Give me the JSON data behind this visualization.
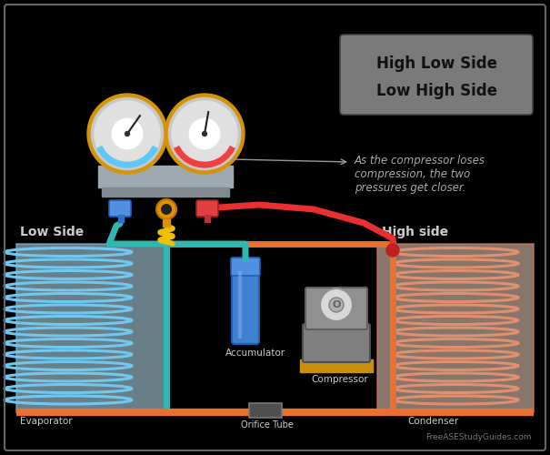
{
  "bg_color": "#000000",
  "border_color": "#666666",
  "title_box_text_line1": "High Low Side",
  "title_box_text_line2": "Low High Side",
  "annotation_text": "As the compressor loses\ncompression, the two\npressures get closer.",
  "low_side_label": "Low Side",
  "high_side_label": "High side",
  "evaporator_label": "Evaporator",
  "accumulator_label": "Accumulator",
  "compressor_label": "Compressor",
  "orifice_label": "Orifice Tube",
  "condenser_label": "Condenser",
  "website_text": "FreeASEStudyGuides.com",
  "gauge_left_color": "#5bc8f5",
  "gauge_right_color": "#f04040",
  "gauge_border_color": "#d4940a",
  "gauge_body_color": "#c8c8c8",
  "gauge_body_light": "#e0e0e0",
  "hose_teal_color": "#30b8b0",
  "hose_yellow_color": "#f0c000",
  "hose_red_color": "#e83030",
  "hose_orange_color": "#e87030",
  "evap_coil_color": "#70c8f0",
  "evap_bg": "#c0e8f8",
  "evap_border": "#70b8e0",
  "cond_coil_color": "#e09070",
  "cond_bg": "#f8d8c0",
  "cond_border": "#d07050",
  "low_box_border": "#80c0e0",
  "high_box_border": "#e08060",
  "accum_color": "#4080d0",
  "accum_cap": "#5090e0",
  "label_color": "#cccccc",
  "title_bg": "#888888",
  "title_text_color": "#111111",
  "annotation_color": "#aaaaaa",
  "manifold_color": "#a0a8b0",
  "manifold_dark": "#808890"
}
